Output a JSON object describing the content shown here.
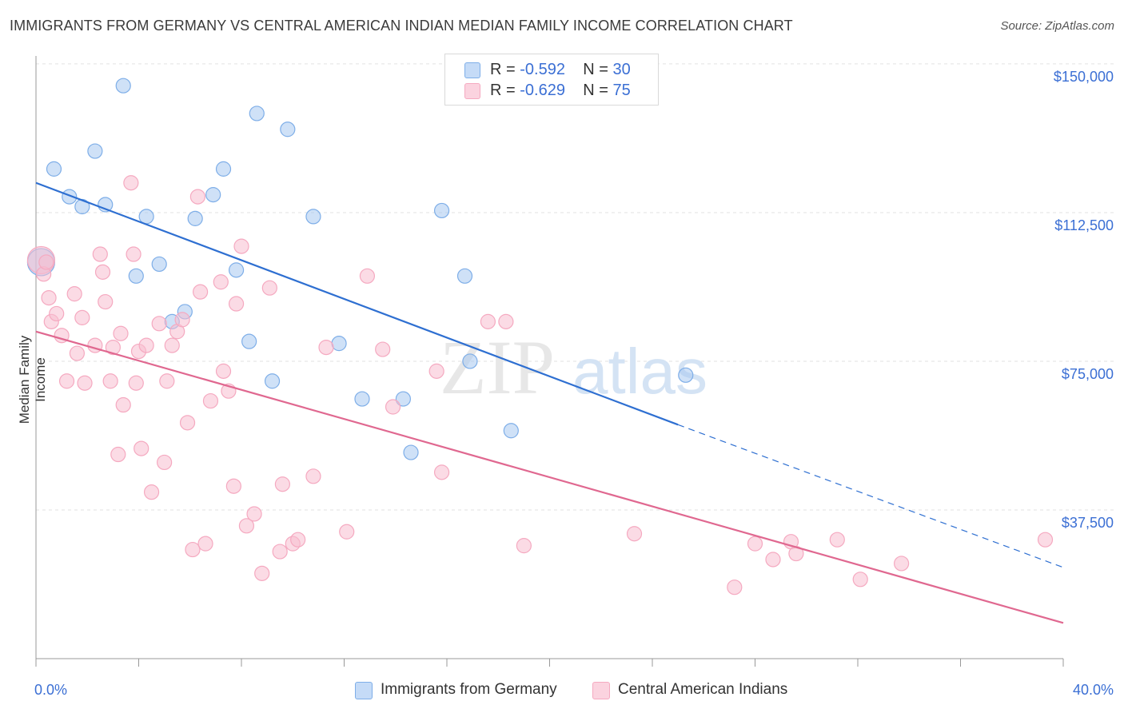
{
  "title": "IMMIGRANTS FROM GERMANY VS CENTRAL AMERICAN INDIAN MEDIAN FAMILY INCOME CORRELATION CHART",
  "source": "Source: ZipAtlas.com",
  "watermark": {
    "zip": "ZIP",
    "atlas": "atlas"
  },
  "legend": [
    {
      "r_label": "R =",
      "r_value": "-0.592",
      "n_label": "N =",
      "n_value": "30",
      "color": "#a8c8f0"
    },
    {
      "r_label": "R =",
      "r_value": "-0.629",
      "n_label": "N =",
      "n_value": "75",
      "color": "#f5b8cc"
    }
  ],
  "chart_data": {
    "type": "scatter",
    "xlabel": "",
    "ylabel": "Median Family Income",
    "x_tick_labels": [
      "0.0%",
      "40.0%"
    ],
    "y_tick_labels": [
      "$37,500",
      "$75,000",
      "$112,500",
      "$150,000"
    ],
    "xlim": [
      0,
      40
    ],
    "ylim": [
      0,
      152000
    ],
    "yticks": [
      37500,
      75000,
      112500,
      150000
    ],
    "grid": true,
    "legend_position": "top-center",
    "series": [
      {
        "name": "Immigrants from Germany",
        "color": "#7eaee8",
        "trend": {
          "x0": 0,
          "y0": 120000,
          "x1": 25,
          "y1": 59000,
          "dashed_to_x": 40,
          "dashed_to_y": 23000,
          "color": "#2e6fd1"
        },
        "points": [
          [
            0.2,
            100000
          ],
          [
            0.7,
            123500
          ],
          [
            1.3,
            116500
          ],
          [
            1.8,
            114000
          ],
          [
            2.3,
            128000
          ],
          [
            2.7,
            114500
          ],
          [
            3.4,
            144500
          ],
          [
            3.9,
            96500
          ],
          [
            4.3,
            111500
          ],
          [
            4.8,
            99500
          ],
          [
            5.3,
            85000
          ],
          [
            5.8,
            87500
          ],
          [
            6.2,
            111000
          ],
          [
            6.9,
            117000
          ],
          [
            7.3,
            123500
          ],
          [
            7.8,
            98000
          ],
          [
            8.3,
            80000
          ],
          [
            8.6,
            137500
          ],
          [
            9.2,
            70000
          ],
          [
            9.8,
            133500
          ],
          [
            10.8,
            111500
          ],
          [
            11.8,
            79500
          ],
          [
            12.7,
            65500
          ],
          [
            14.3,
            65500
          ],
          [
            14.6,
            52000
          ],
          [
            15.8,
            113000
          ],
          [
            16.7,
            96500
          ],
          [
            16.9,
            75000
          ],
          [
            18.5,
            57500
          ],
          [
            25.3,
            71500
          ]
        ]
      },
      {
        "name": "Central American Indians",
        "color": "#f5a9c0",
        "trend": {
          "x0": 0,
          "y0": 82500,
          "x1": 40,
          "y1": 9000,
          "color": "#e06890"
        },
        "points": [
          [
            0.2,
            100500
          ],
          [
            0.3,
            97000
          ],
          [
            0.5,
            91000
          ],
          [
            0.6,
            85000
          ],
          [
            0.8,
            87000
          ],
          [
            1.0,
            81500
          ],
          [
            1.2,
            70000
          ],
          [
            1.5,
            92000
          ],
          [
            1.6,
            77000
          ],
          [
            1.8,
            86000
          ],
          [
            1.9,
            69500
          ],
          [
            2.3,
            79000
          ],
          [
            2.5,
            102000
          ],
          [
            2.6,
            97500
          ],
          [
            2.7,
            90000
          ],
          [
            2.9,
            70000
          ],
          [
            3.0,
            78500
          ],
          [
            3.2,
            51500
          ],
          [
            3.3,
            82000
          ],
          [
            3.4,
            64000
          ],
          [
            3.7,
            120000
          ],
          [
            3.8,
            102000
          ],
          [
            3.9,
            69500
          ],
          [
            4.0,
            77500
          ],
          [
            4.1,
            53000
          ],
          [
            4.3,
            79000
          ],
          [
            4.5,
            42000
          ],
          [
            4.8,
            84500
          ],
          [
            5.0,
            49500
          ],
          [
            5.1,
            70000
          ],
          [
            5.3,
            79000
          ],
          [
            5.5,
            82500
          ],
          [
            5.7,
            85500
          ],
          [
            5.9,
            59500
          ],
          [
            6.1,
            27500
          ],
          [
            6.3,
            116500
          ],
          [
            6.4,
            92500
          ],
          [
            6.6,
            29000
          ],
          [
            6.8,
            65000
          ],
          [
            7.2,
            95000
          ],
          [
            7.3,
            72500
          ],
          [
            7.5,
            67500
          ],
          [
            7.7,
            43500
          ],
          [
            7.8,
            89500
          ],
          [
            8.0,
            104000
          ],
          [
            8.2,
            33500
          ],
          [
            8.5,
            36500
          ],
          [
            8.8,
            21500
          ],
          [
            9.1,
            93500
          ],
          [
            9.5,
            27000
          ],
          [
            9.6,
            44000
          ],
          [
            10.0,
            29000
          ],
          [
            10.2,
            30000
          ],
          [
            10.8,
            46000
          ],
          [
            11.3,
            78500
          ],
          [
            12.1,
            32000
          ],
          [
            12.9,
            96500
          ],
          [
            13.5,
            78000
          ],
          [
            13.9,
            63500
          ],
          [
            15.6,
            72500
          ],
          [
            15.8,
            47000
          ],
          [
            17.6,
            85000
          ],
          [
            18.3,
            85000
          ],
          [
            19.0,
            28500
          ],
          [
            23.3,
            31500
          ],
          [
            27.2,
            18000
          ],
          [
            28.0,
            29000
          ],
          [
            28.7,
            25000
          ],
          [
            29.4,
            29500
          ],
          [
            29.6,
            26500
          ],
          [
            31.2,
            30000
          ],
          [
            32.1,
            20000
          ],
          [
            33.7,
            24000
          ],
          [
            39.3,
            30000
          ],
          [
            0.4,
            100000
          ]
        ]
      }
    ]
  }
}
